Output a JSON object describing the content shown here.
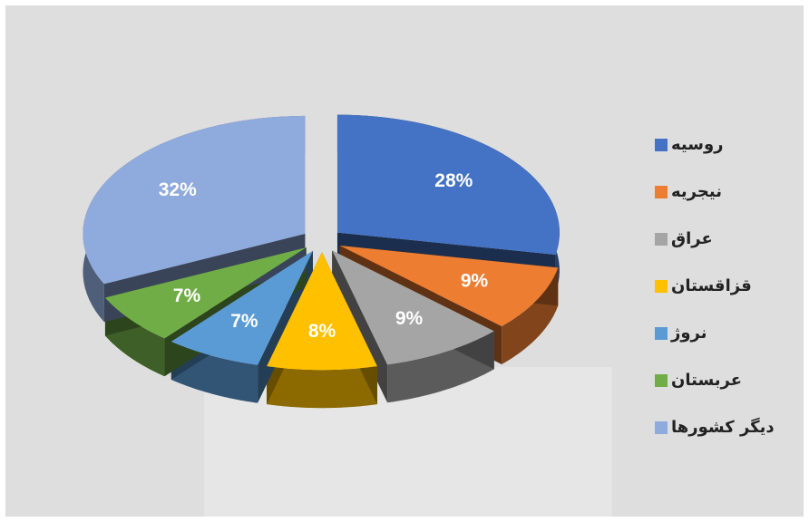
{
  "chart_data": {
    "type": "pie",
    "categories": [
      "روسیه",
      "نیجریه",
      "عراق",
      "قزاقستان",
      "نروژ",
      "عربستان",
      "دیگر کشورها"
    ],
    "values": [
      28,
      9,
      9,
      8,
      7,
      7,
      32
    ],
    "value_labels": [
      "28%",
      "9%",
      "9%",
      "8%",
      "7%",
      "7%",
      "32%"
    ],
    "colors": [
      "#4472c4",
      "#ed7d31",
      "#a5a5a5",
      "#ffc000",
      "#5b9bd5",
      "#70ad47",
      "#8faadc"
    ],
    "legend": "right"
  }
}
